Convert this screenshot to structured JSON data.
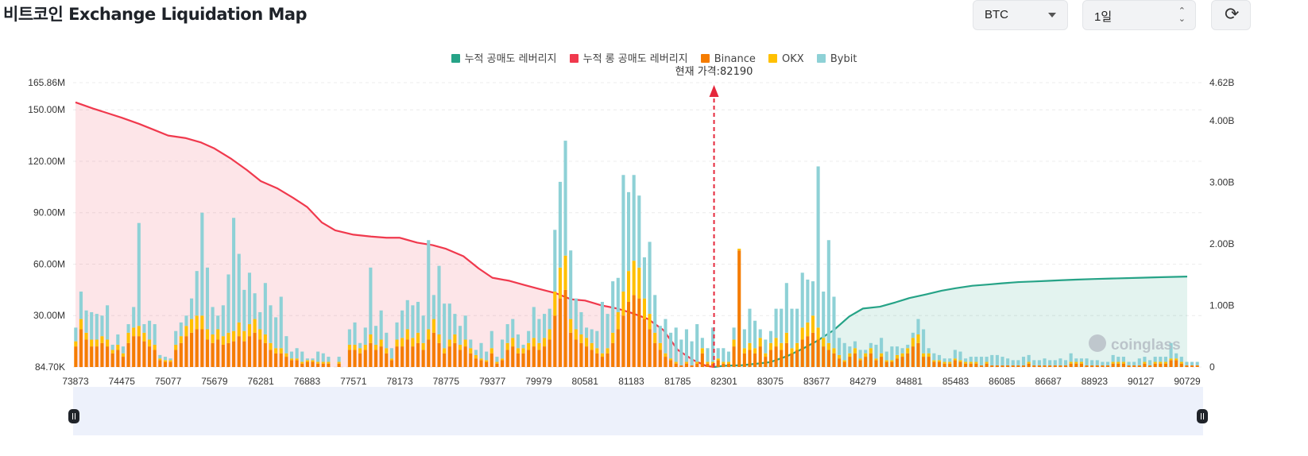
{
  "header": {
    "title": "비트코인 Exchange Liquidation Map",
    "asset_select": "BTC",
    "period_select": "1일",
    "refresh_icon": "refresh-icon"
  },
  "legend": [
    {
      "label": "누적 공매도 레버리지",
      "color": "#26a387"
    },
    {
      "label": "누적 롱 공매도 레버리지",
      "color": "#f0394d"
    },
    {
      "label": "Binance",
      "color": "#f57c00"
    },
    {
      "label": "OKX",
      "color": "#ffc000"
    },
    {
      "label": "Bybit",
      "color": "#8ed1d6"
    }
  ],
  "current_price_label": "현재 가격:82190",
  "watermark": "coinglass",
  "chart_data": {
    "type": "bar",
    "x_ticks": [
      "73873",
      "74475",
      "75077",
      "75679",
      "76281",
      "76883",
      "77571",
      "78173",
      "78775",
      "79377",
      "79979",
      "80581",
      "81183",
      "81785",
      "82301",
      "83075",
      "83677",
      "84279",
      "84881",
      "85483",
      "86085",
      "86687",
      "88923",
      "90127",
      "90729"
    ],
    "y_left_ticks": [
      "165.86M",
      "150.00M",
      "120.00M",
      "90.00M",
      "60.00M",
      "30.00M",
      "84.70K"
    ],
    "y_right_ticks": [
      "4.62B",
      "4.00B",
      "3.00B",
      "2.00B",
      "1.00B",
      "0"
    ],
    "y_left_range": [
      0,
      165.86
    ],
    "y_right_range": [
      0,
      4.62
    ],
    "current_price": 82190,
    "series": [
      {
        "name": "Binance",
        "values": [
          12,
          22,
          16,
          12,
          12,
          14,
          12,
          8,
          10,
          6,
          14,
          18,
          18,
          15,
          12,
          10,
          4,
          3,
          3,
          10,
          14,
          18,
          20,
          22,
          22,
          16,
          14,
          16,
          13,
          14,
          15,
          18,
          15,
          18,
          20,
          16,
          14,
          10,
          8,
          8,
          6,
          4,
          4,
          2,
          3,
          3,
          2,
          2,
          2,
          0,
          2,
          0,
          10,
          10,
          8,
          10,
          14,
          10,
          12,
          8,
          4,
          12,
          12,
          16,
          12,
          14,
          10,
          16,
          20,
          14,
          8,
          12,
          14,
          10,
          12,
          8,
          5,
          4,
          3,
          8,
          2,
          4,
          10,
          12,
          8,
          8,
          10,
          12,
          10,
          12,
          16,
          30,
          40,
          45,
          20,
          16,
          14,
          12,
          10,
          8,
          6,
          8,
          14,
          22,
          30,
          38,
          42,
          40,
          28,
          22,
          14,
          10,
          6,
          4,
          2,
          1,
          2,
          1,
          2,
          8,
          2,
          2,
          4,
          2,
          2,
          12,
          68,
          8,
          10,
          8,
          12,
          6,
          10,
          12,
          10,
          14,
          8,
          10,
          16,
          18,
          20,
          16,
          12,
          10,
          8,
          5,
          3,
          6,
          8,
          4,
          6,
          8,
          4,
          6,
          3,
          3,
          5,
          6,
          8,
          12,
          14,
          6,
          6,
          3,
          3,
          2,
          2,
          4,
          3,
          2,
          2,
          2,
          1,
          2,
          1,
          1,
          1,
          1,
          1,
          1,
          1,
          2,
          1,
          1,
          1,
          1,
          1,
          1,
          1,
          2,
          2,
          2,
          1,
          1,
          1,
          1,
          1,
          2,
          2,
          2,
          1,
          1,
          1,
          2,
          1,
          2,
          2,
          2,
          4,
          4,
          2,
          1,
          1,
          1
        ]
      },
      {
        "name": "OKX",
        "values": [
          3,
          6,
          4,
          4,
          4,
          4,
          4,
          2,
          3,
          2,
          6,
          5,
          6,
          5,
          4,
          3,
          1,
          1,
          1,
          3,
          4,
          6,
          8,
          8,
          8,
          6,
          5,
          6,
          5,
          6,
          6,
          8,
          6,
          7,
          8,
          6,
          5,
          4,
          3,
          3,
          2,
          1,
          1,
          1,
          1,
          1,
          1,
          1,
          1,
          0,
          1,
          0,
          3,
          3,
          3,
          3,
          5,
          3,
          4,
          3,
          1,
          4,
          5,
          6,
          5,
          6,
          4,
          6,
          8,
          5,
          3,
          4,
          5,
          3,
          4,
          3,
          2,
          1,
          1,
          3,
          1,
          1,
          4,
          5,
          3,
          3,
          4,
          5,
          4,
          5,
          6,
          14,
          18,
          20,
          8,
          6,
          5,
          5,
          4,
          3,
          2,
          3,
          6,
          10,
          14,
          18,
          20,
          18,
          12,
          9,
          6,
          4,
          2,
          1,
          1,
          0,
          1,
          0,
          1,
          3,
          1,
          1,
          1,
          1,
          1,
          4,
          1,
          3,
          4,
          3,
          5,
          2,
          4,
          5,
          4,
          6,
          3,
          4,
          7,
          8,
          10,
          7,
          5,
          4,
          3,
          2,
          1,
          2,
          3,
          1,
          2,
          3,
          1,
          2,
          1,
          1,
          2,
          2,
          3,
          5,
          5,
          2,
          2,
          1,
          1,
          1,
          1,
          1,
          1,
          1,
          1,
          1,
          0,
          1,
          0,
          0,
          0,
          0,
          0,
          0,
          0,
          1,
          0,
          0,
          0,
          0,
          0,
          0,
          0,
          1,
          1,
          1,
          0,
          0,
          0,
          0,
          0,
          1,
          1,
          1,
          0,
          0,
          0,
          1,
          0,
          1,
          1,
          1,
          1,
          1,
          1,
          0,
          0,
          0
        ]
      },
      {
        "name": "Bybit",
        "values": [
          8,
          16,
          13,
          16,
          15,
          12,
          20,
          3,
          6,
          4,
          5,
          12,
          60,
          5,
          11,
          12,
          2,
          2,
          1,
          8,
          8,
          6,
          12,
          26,
          60,
          36,
          16,
          8,
          18,
          34,
          66,
          40,
          24,
          30,
          15,
          10,
          30,
          22,
          18,
          30,
          10,
          4,
          6,
          6,
          1,
          1,
          6,
          5,
          3,
          0,
          3,
          0,
          9,
          13,
          3,
          10,
          39,
          11,
          17,
          9,
          6,
          10,
          16,
          17,
          19,
          18,
          16,
          52,
          14,
          40,
          26,
          21,
          12,
          11,
          14,
          5,
          3,
          9,
          5,
          10,
          3,
          11,
          11,
          11,
          8,
          2,
          7,
          18,
          14,
          14,
          12,
          36,
          50,
          67,
          40,
          18,
          13,
          6,
          8,
          10,
          30,
          20,
          30,
          20,
          68,
          46,
          50,
          42,
          24,
          42,
          22,
          10,
          20,
          15,
          20,
          15,
          19,
          14,
          22,
          6,
          8,
          20,
          6,
          8,
          6,
          7,
          -1,
          11,
          20,
          16,
          5,
          8,
          7,
          17,
          20,
          29,
          23,
          20,
          32,
          25,
          20,
          94,
          27,
          60,
          30,
          10,
          10,
          4,
          4,
          5,
          2,
          3,
          8,
          9,
          5,
          8,
          5,
          3,
          2,
          3,
          9,
          14,
          3,
          4,
          3,
          2,
          2,
          5,
          5,
          2,
          3,
          3,
          5,
          3,
          6,
          6,
          5,
          4,
          3,
          3,
          5,
          4,
          3,
          3,
          4,
          3,
          3,
          4,
          3,
          5,
          2,
          2,
          4,
          3,
          3,
          2,
          2,
          4,
          3,
          3,
          2,
          2,
          4,
          3,
          3,
          3,
          3,
          3,
          9,
          3,
          3,
          2,
          2,
          2
        ]
      },
      {
        "name": "누적 롱 공매도 레버리지",
        "axis": "right",
        "x": [
          73873,
          74100,
          74300,
          74475,
          74700,
          74900,
          75077,
          75300,
          75500,
          75679,
          75900,
          76100,
          76281,
          76500,
          76700,
          76883,
          77100,
          77300,
          77571,
          77800,
          78000,
          78173,
          78400,
          78600,
          78775,
          79000,
          79200,
          79377,
          79600,
          79800,
          79979,
          80200,
          80400,
          80581,
          80800,
          81000,
          81183,
          81400,
          81600,
          81785,
          81950,
          82100,
          82190
        ],
        "values": [
          4.3,
          4.2,
          4.12,
          4.05,
          3.95,
          3.85,
          3.76,
          3.72,
          3.65,
          3.55,
          3.38,
          3.2,
          3.02,
          2.9,
          2.75,
          2.6,
          2.35,
          2.22,
          2.15,
          2.12,
          2.1,
          2.1,
          2.02,
          1.98,
          1.92,
          1.8,
          1.6,
          1.45,
          1.4,
          1.33,
          1.27,
          1.2,
          1.1,
          1.08,
          1.0,
          0.95,
          0.88,
          0.78,
          0.6,
          0.28,
          0.12,
          0.02,
          0
        ]
      },
      {
        "name": "누적 공매도 레버리지",
        "axis": "right",
        "x": [
          82190,
          82301,
          82600,
          82900,
          83075,
          83300,
          83500,
          83677,
          83900,
          84100,
          84279,
          84500,
          84700,
          84881,
          85100,
          85300,
          85483,
          85700,
          85900,
          86085,
          86300,
          86500,
          86687,
          87300,
          88000,
          88923,
          89500,
          90127,
          90400,
          90729
        ],
        "values": [
          0,
          0.02,
          0.03,
          0.06,
          0.08,
          0.18,
          0.3,
          0.42,
          0.6,
          0.82,
          0.95,
          0.98,
          1.05,
          1.12,
          1.18,
          1.24,
          1.28,
          1.32,
          1.34,
          1.36,
          1.38,
          1.39,
          1.4,
          1.41,
          1.42,
          1.43,
          1.44,
          1.45,
          1.46,
          1.47
        ]
      }
    ],
    "grid": true,
    "legend_position": "top-center"
  }
}
